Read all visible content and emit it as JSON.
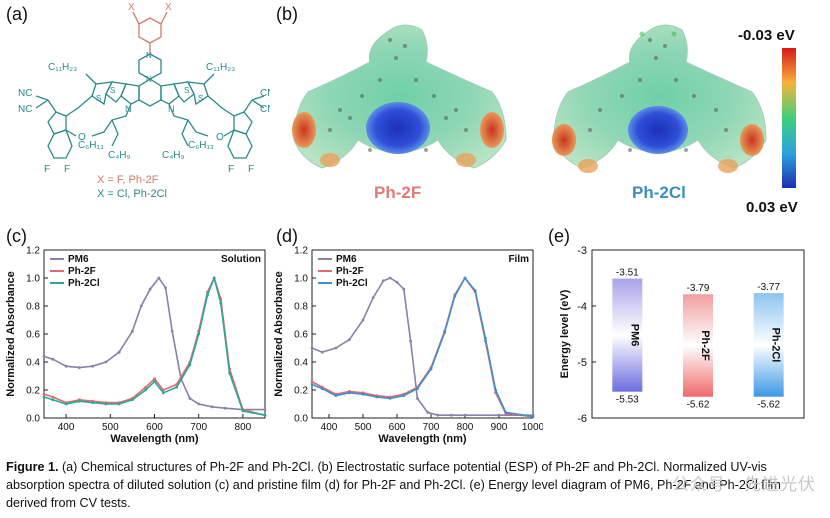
{
  "panel_a": {
    "label": "(a)",
    "atoms": {
      "x_top_left": "X",
      "x_top_right": "X",
      "n_left": "N",
      "n_right": "N",
      "s_labels": [
        "S",
        "S",
        "S",
        "S",
        "S"
      ],
      "c11h23_left": "C₁₁H₂₃",
      "c11h23_right": "C₁₁H₂₃",
      "c6h13_left": "C₆H₁₃",
      "c6h13_right": "C₆H₁₃",
      "c4h9_left": "C₄H₉",
      "c4h9_right": "C₄H₉",
      "nc_labels": [
        "NC",
        "NC",
        "CN",
        "CN"
      ],
      "o_labels": [
        "O",
        "O"
      ],
      "f_labels": [
        "F",
        "F",
        "F",
        "F"
      ]
    },
    "legend_f": "X = F, Ph-2F",
    "legend_cl": "X = Cl, Ph-2Cl"
  },
  "panel_b": {
    "label": "(b)",
    "mol1_label": "Ph-2F",
    "mol2_label": "Ph-2Cl",
    "scale_top": "-0.03 eV",
    "scale_bottom": "0.03 eV"
  },
  "chart_data": [
    {
      "panel": "(c)",
      "type": "line",
      "corner_label": "Solution",
      "xlabel": "Wavelength (nm)",
      "ylabel": "Normalized Absorbance",
      "xlim": [
        350,
        850
      ],
      "ylim": [
        0,
        1.2
      ],
      "xticks": [
        "400",
        "500",
        "600",
        "700",
        "800"
      ],
      "yticks": [
        "0.0",
        "0.2",
        "0.4",
        "0.6",
        "0.8",
        "1.0",
        "1.2"
      ],
      "legend": [
        "PM6",
        "Ph-2F",
        "Ph-2Cl"
      ],
      "series": [
        {
          "name": "PM6",
          "color": "#8a80a8",
          "x": [
            350,
            370,
            400,
            430,
            460,
            490,
            520,
            550,
            570,
            590,
            610,
            625,
            640,
            660,
            680,
            700,
            730,
            760,
            800,
            850
          ],
          "y": [
            0.44,
            0.42,
            0.37,
            0.36,
            0.37,
            0.4,
            0.47,
            0.62,
            0.8,
            0.92,
            1.0,
            0.93,
            0.62,
            0.28,
            0.14,
            0.1,
            0.08,
            0.07,
            0.06,
            0.06
          ]
        },
        {
          "name": "Ph-2F",
          "color": "#e06b6b",
          "x": [
            350,
            370,
            400,
            430,
            460,
            490,
            520,
            550,
            580,
            600,
            620,
            650,
            680,
            700,
            720,
            735,
            750,
            770,
            800,
            850
          ],
          "y": [
            0.17,
            0.15,
            0.11,
            0.13,
            0.12,
            0.11,
            0.11,
            0.14,
            0.22,
            0.28,
            0.2,
            0.24,
            0.4,
            0.62,
            0.9,
            1.0,
            0.85,
            0.35,
            0.06,
            0.02
          ]
        },
        {
          "name": "Ph-2Cl",
          "color": "#2aa79b",
          "x": [
            350,
            370,
            400,
            430,
            460,
            490,
            520,
            550,
            580,
            600,
            620,
            650,
            680,
            700,
            720,
            735,
            750,
            770,
            800,
            850
          ],
          "y": [
            0.15,
            0.13,
            0.1,
            0.12,
            0.11,
            0.1,
            0.1,
            0.13,
            0.2,
            0.26,
            0.18,
            0.22,
            0.38,
            0.6,
            0.88,
            1.0,
            0.82,
            0.32,
            0.05,
            0.02
          ]
        }
      ]
    },
    {
      "panel": "(d)",
      "type": "line",
      "corner_label": "Film",
      "xlabel": "Wavelength (nm)",
      "ylabel": "Normalized Absorbance",
      "xlim": [
        350,
        1000
      ],
      "ylim": [
        0,
        1.2
      ],
      "xticks": [
        "400",
        "500",
        "600",
        "700",
        "800",
        "900",
        "1000"
      ],
      "yticks": [
        "0.0",
        "0.2",
        "0.4",
        "0.6",
        "0.8",
        "1.0",
        "1.2"
      ],
      "legend": [
        "PM6",
        "Ph-2F",
        "Ph-2Cl"
      ],
      "series": [
        {
          "name": "PM6",
          "color": "#8a80a8",
          "x": [
            350,
            380,
            420,
            460,
            500,
            530,
            560,
            580,
            600,
            620,
            640,
            660,
            690,
            720,
            760,
            800,
            900,
            1000
          ],
          "y": [
            0.5,
            0.47,
            0.5,
            0.56,
            0.7,
            0.86,
            0.98,
            1.0,
            0.97,
            0.92,
            0.55,
            0.14,
            0.04,
            0.02,
            0.02,
            0.02,
            0.02,
            0.02
          ]
        },
        {
          "name": "Ph-2F",
          "color": "#e06b6b",
          "x": [
            350,
            380,
            420,
            460,
            500,
            540,
            580,
            620,
            660,
            700,
            740,
            770,
            800,
            830,
            860,
            890,
            920,
            1000
          ],
          "y": [
            0.26,
            0.22,
            0.17,
            0.19,
            0.18,
            0.16,
            0.15,
            0.17,
            0.22,
            0.36,
            0.62,
            0.88,
            1.0,
            0.9,
            0.55,
            0.18,
            0.03,
            0.01
          ]
        },
        {
          "name": "Ph-2Cl",
          "color": "#3d8fd0",
          "x": [
            350,
            380,
            420,
            460,
            500,
            540,
            580,
            620,
            660,
            700,
            740,
            770,
            800,
            830,
            860,
            890,
            920,
            1000
          ],
          "y": [
            0.24,
            0.21,
            0.16,
            0.18,
            0.17,
            0.15,
            0.14,
            0.16,
            0.21,
            0.35,
            0.61,
            0.87,
            1.0,
            0.91,
            0.57,
            0.2,
            0.04,
            0.01
          ]
        }
      ]
    },
    {
      "panel": "(e)",
      "type": "bar",
      "ylabel": "Energy level (eV)",
      "ylim": [
        -6,
        -3
      ],
      "yticks": [
        "-3",
        "-4",
        "-5",
        "-6"
      ],
      "series": [
        {
          "name": "PM6",
          "lumo": -3.51,
          "homo": -5.53,
          "lumo_label": "-3.51",
          "homo_label": "-5.53",
          "top_color": "#a9a4e8",
          "bottom_color": "#6d6de0"
        },
        {
          "name": "Ph-2F",
          "lumo": -3.79,
          "homo": -5.62,
          "lumo_label": "-3.79",
          "homo_label": "-5.62",
          "top_color": "#f0a0a0",
          "bottom_color": "#f06a6a"
        },
        {
          "name": "Ph-2Cl",
          "lumo": -3.77,
          "homo": -5.62,
          "lumo_label": "-3.77",
          "homo_label": "-5.62",
          "top_color": "#8cc4f0",
          "bottom_color": "#3d98e6"
        }
      ]
    }
  ],
  "caption": {
    "bold": "Figure 1.",
    "text": " (a) Chemical structures of Ph-2F and Ph-2Cl. (b) Electrostatic surface potential (ESP) of Ph-2F and Ph-2Cl. Normalized UV-vis absorption spectra of diluted solution (c) and pristine film (d) for Ph-2F and Ph-2Cl. (e) Energy level diagram of PM6, Ph-2F and Ph-2Cl film derived from CV tests."
  },
  "watermark": "公众号 · 先进光伏"
}
